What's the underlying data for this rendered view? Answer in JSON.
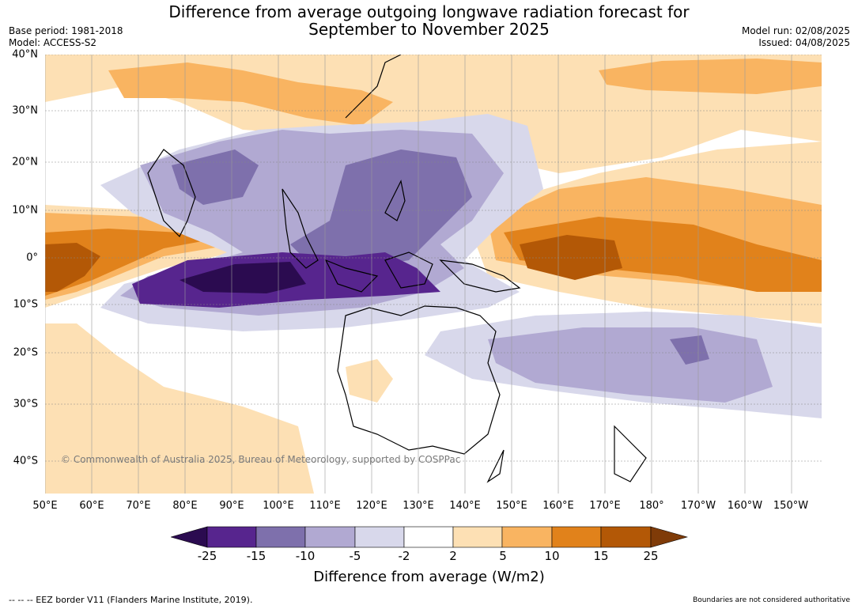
{
  "title_line1": "Difference from average outgoing longwave radiation forecast for",
  "title_line2": "September to November 2025",
  "base_period": "Base period: 1981-2018",
  "model": "Model: ACCESS-S2",
  "model_run": "Model run: 02/08/2025",
  "issued": "Issued: 04/08/2025",
  "copyright": "© Commonwealth of Australia 2025, Bureau of Meteorology, supported by COSPPac",
  "lat_labels": [
    "40°N",
    "30°N",
    "20°N",
    "10°N",
    "0°",
    "10°S",
    "20°S",
    "30°S",
    "40°S"
  ],
  "lon_labels": [
    "50°E",
    "60°E",
    "70°E",
    "80°E",
    "90°E",
    "100°E",
    "110°E",
    "120°E",
    "130°E",
    "140°E",
    "150°E",
    "160°E",
    "170°E",
    "180°",
    "170°W",
    "160°W",
    "150°W"
  ],
  "colorbar": {
    "title": "Difference from average (W/m2)",
    "tick_labels": [
      "-25",
      "-15",
      "-10",
      "-5",
      "-2",
      "2",
      "5",
      "10",
      "15",
      "25"
    ],
    "colors": [
      "#2b0b50",
      "#57258e",
      "#7e70ac",
      "#b1a9d2",
      "#d8d8eb",
      "#ffffff",
      "#fde0b4",
      "#f9b461",
      "#e1821b",
      "#b35806",
      "#7f3b08"
    ]
  },
  "footer_left": "--  --  -- EEZ border V11 (Flanders Marine Institute, 2019).",
  "footer_right": "Boundaries are not considered authoritative"
}
